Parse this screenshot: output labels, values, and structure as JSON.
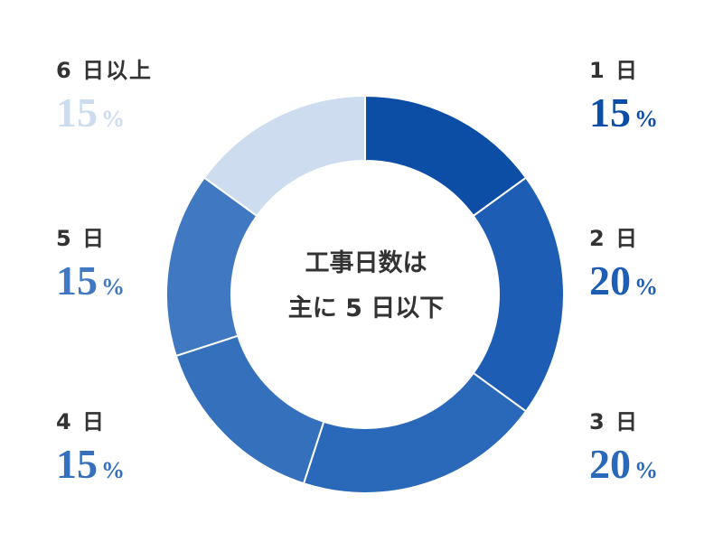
{
  "chart_data": {
    "type": "pie",
    "donut": true,
    "center_text": [
      "工事日数は",
      "主に 5 日以下"
    ],
    "slices": [
      {
        "label": "1 日",
        "value": 15,
        "display": "15",
        "color": "#0c4ea6"
      },
      {
        "label": "2 日",
        "value": 20,
        "display": "20",
        "color": "#1d5db4"
      },
      {
        "label": "3 日",
        "value": 20,
        "display": "20",
        "color": "#2a68b9"
      },
      {
        "label": "4 日",
        "value": 15,
        "display": "15",
        "color": "#3570bd"
      },
      {
        "label": "5 日",
        "value": 15,
        "display": "15",
        "color": "#4079c1"
      },
      {
        "label": "6 日以上",
        "value": 15,
        "display": "15",
        "color": "#cddcef"
      }
    ],
    "percent_sign": "%"
  }
}
